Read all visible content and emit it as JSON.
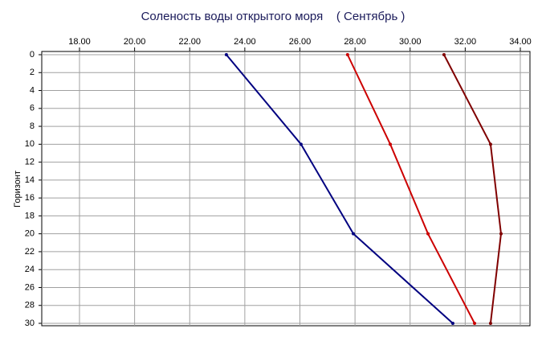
{
  "chart_data": {
    "type": "line",
    "title": "Соленость воды открытого моря    ( Сентябрь )",
    "y_label": "Горизонт",
    "y": [
      0,
      10,
      20,
      30
    ],
    "series": [
      {
        "color": "#000080",
        "values": [
          23.33,
          26.04,
          27.94,
          31.55
        ]
      },
      {
        "color": "#cc0000",
        "values": [
          27.73,
          29.28,
          30.65,
          32.34
        ]
      },
      {
        "color": "#800000",
        "values": [
          31.23,
          32.92,
          33.3,
          32.92
        ]
      }
    ],
    "xlim": [
      16.63,
      34.35
    ],
    "xticks": [
      {
        "value": 18,
        "label": "18.00"
      },
      {
        "value": 20,
        "label": "20.00"
      },
      {
        "value": 22,
        "label": "22.00"
      },
      {
        "value": 24,
        "label": "24.00"
      },
      {
        "value": 26,
        "label": "26.00"
      },
      {
        "value": 28,
        "label": "28.00"
      },
      {
        "value": 30,
        "label": "30.00"
      },
      {
        "value": 32,
        "label": "32.00"
      },
      {
        "value": 34,
        "label": "34.00"
      }
    ],
    "ylim": [
      0,
      30
    ],
    "yticks": [
      0,
      2,
      4,
      6,
      8,
      10,
      12,
      14,
      16,
      18,
      20,
      22,
      24,
      26,
      28,
      30
    ],
    "grid": true
  }
}
